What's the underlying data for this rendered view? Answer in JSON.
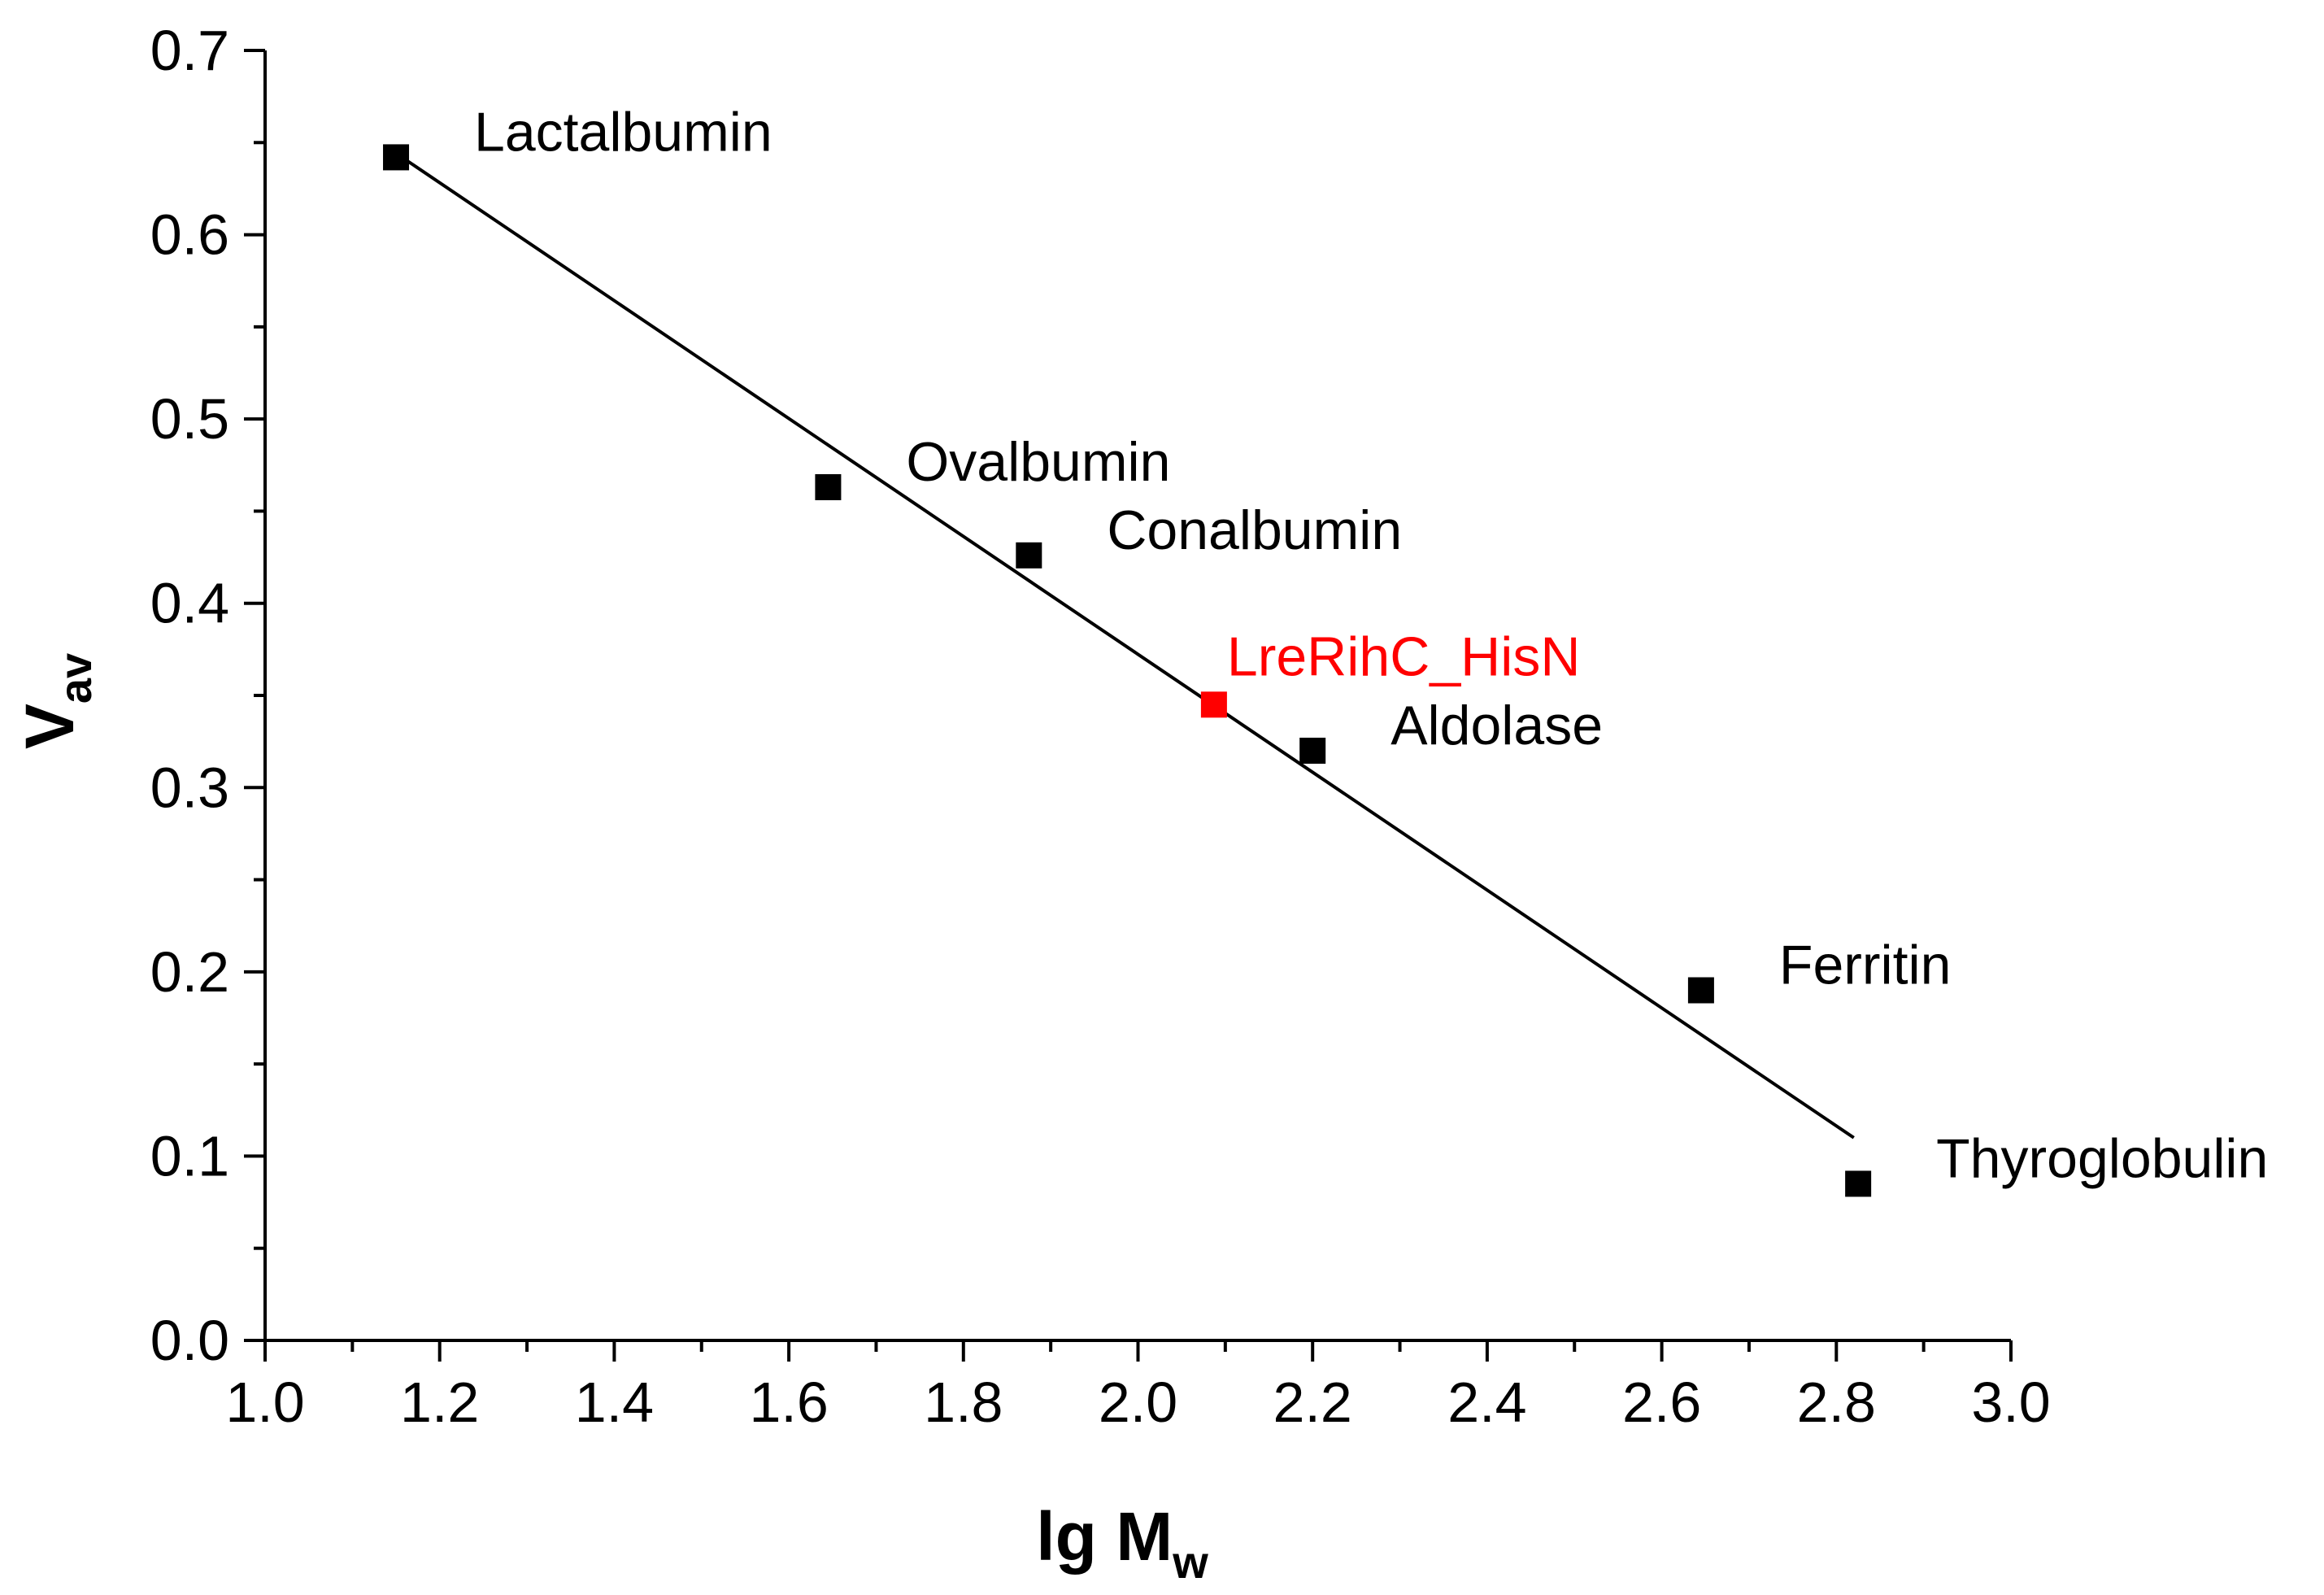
{
  "chart_data": {
    "type": "scatter",
    "xlabel": {
      "main": "lg M",
      "sub": "w"
    },
    "ylabel": {
      "main": "V",
      "sub": "av"
    },
    "xlim": [
      1.0,
      3.0
    ],
    "ylim": [
      0.0,
      0.7
    ],
    "x_ticks": [
      "1.0",
      "1.2",
      "1.4",
      "1.6",
      "1.8",
      "2.0",
      "2.2",
      "2.4",
      "2.6",
      "2.8",
      "3.0"
    ],
    "y_ticks": [
      "0.0",
      "0.1",
      "0.2",
      "0.3",
      "0.4",
      "0.5",
      "0.6",
      "0.7"
    ],
    "points": [
      {
        "label": "Lactalbumin",
        "x": 1.15,
        "y": 0.642,
        "color": "#000000"
      },
      {
        "label": "Ovalbumin",
        "x": 1.645,
        "y": 0.463,
        "color": "#000000"
      },
      {
        "label": "Conalbumin",
        "x": 1.875,
        "y": 0.426,
        "color": "#000000"
      },
      {
        "label": "LreRihC_HisN",
        "x": 2.087,
        "y": 0.345,
        "color": "#ff0000"
      },
      {
        "label": "Aldolase",
        "x": 2.2,
        "y": 0.32,
        "color": "#000000"
      },
      {
        "label": "Ferritin",
        "x": 2.645,
        "y": 0.19,
        "color": "#000000"
      },
      {
        "label": "Thyroglobulin",
        "x": 2.825,
        "y": 0.085,
        "color": "#000000"
      }
    ],
    "fit_line": {
      "x": [
        1.16,
        2.82
      ],
      "y": [
        0.641,
        0.11
      ]
    }
  }
}
